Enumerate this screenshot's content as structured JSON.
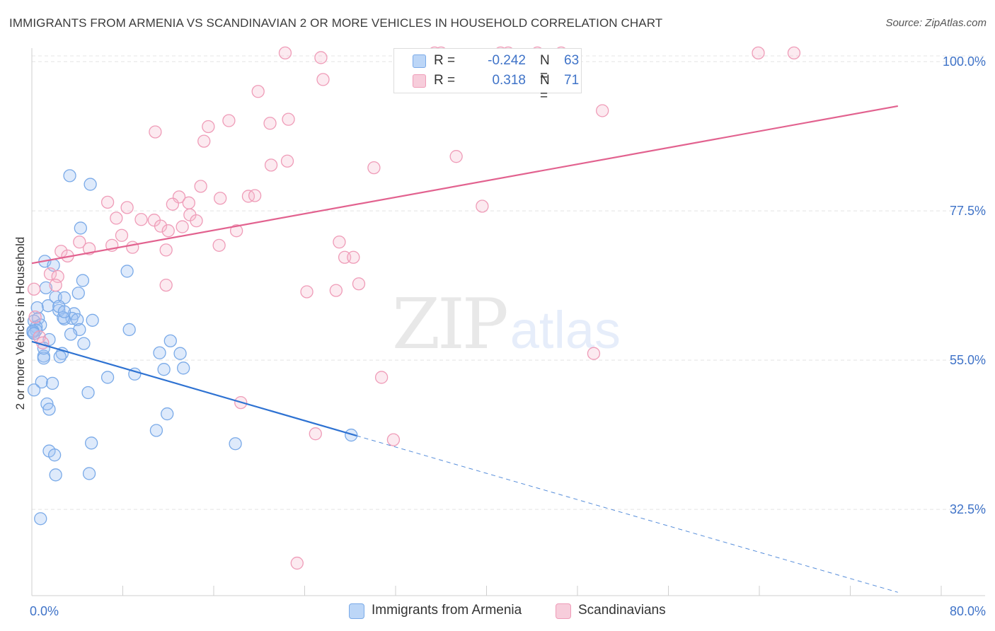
{
  "title": "IMMIGRANTS FROM ARMENIA VS SCANDINAVIAN 2 OR MORE VEHICLES IN HOUSEHOLD CORRELATION CHART",
  "source": "Source: ZipAtlas.com",
  "watermark": {
    "zip": "ZIP",
    "atlas": "atlas"
  },
  "legend_top": {
    "rows": [
      {
        "r_label": "R =",
        "r_value": "-0.242",
        "n_label": "N =",
        "n_value": "63"
      },
      {
        "r_label": "R =",
        "r_value": "0.318",
        "n_label": "N =",
        "n_value": "71"
      }
    ]
  },
  "chart_data": {
    "type": "scatter",
    "title": "IMMIGRANTS FROM ARMENIA VS SCANDINAVIAN 2 OR MORE VEHICLES IN HOUSEHOLD CORRELATION CHART",
    "xlabel": "",
    "ylabel": "2 or more Vehicles in Household",
    "x_tick_labels": [
      "0.0%",
      "80.0%"
    ],
    "y_tick_labels": [
      "100.0%",
      "77.5%",
      "55.0%",
      "32.5%"
    ],
    "y_ticks": [
      100.0,
      77.5,
      55.0,
      32.5
    ],
    "xlim": [
      0,
      84
    ],
    "ylim": [
      19.5,
      101.5
    ],
    "grid": true,
    "legend_placement": "bottom-center",
    "series": [
      {
        "name": "Immigrants from Armenia",
        "color": "#7aaae8",
        "fill": "rgba(160,196,244,0.35)",
        "line_color": "#2e72d2",
        "R": -0.242,
        "N": 63,
        "trend": {
          "x0": 0.0,
          "y0": 57.8,
          "x1": 30.0,
          "y1": 43.6,
          "dash_to_x": 80.0,
          "dash_to_y": 20.0
        },
        "points": [
          [
            3.5,
            82.8
          ],
          [
            5.4,
            81.5
          ],
          [
            4.5,
            74.9
          ],
          [
            8.8,
            68.4
          ],
          [
            1.2,
            69.9
          ],
          [
            2.0,
            69.3
          ],
          [
            4.7,
            67.0
          ],
          [
            1.3,
            65.9
          ],
          [
            2.2,
            64.5
          ],
          [
            3.0,
            64.4
          ],
          [
            1.5,
            63.2
          ],
          [
            0.5,
            62.9
          ],
          [
            2.5,
            62.5
          ],
          [
            3.9,
            62.0
          ],
          [
            3.7,
            61.3
          ],
          [
            3.0,
            61.2
          ],
          [
            2.9,
            61.4
          ],
          [
            0.6,
            61.3
          ],
          [
            4.2,
            61.1
          ],
          [
            0.2,
            60.9
          ],
          [
            0.8,
            60.3
          ],
          [
            0.4,
            60.0
          ],
          [
            0.4,
            59.5
          ],
          [
            0.1,
            59.2
          ],
          [
            0.1,
            59.4
          ],
          [
            0.2,
            59.0
          ],
          [
            4.4,
            59.6
          ],
          [
            9.0,
            59.6
          ],
          [
            4.8,
            57.5
          ],
          [
            12.8,
            57.9
          ],
          [
            2.8,
            56.0
          ],
          [
            1.1,
            55.6
          ],
          [
            1.1,
            55.3
          ],
          [
            2.6,
            55.5
          ],
          [
            11.8,
            56.1
          ],
          [
            13.7,
            56.0
          ],
          [
            14.0,
            53.8
          ],
          [
            7.0,
            52.4
          ],
          [
            9.5,
            52.9
          ],
          [
            12.2,
            53.6
          ],
          [
            0.9,
            51.7
          ],
          [
            1.9,
            51.5
          ],
          [
            0.2,
            50.5
          ],
          [
            5.2,
            50.1
          ],
          [
            1.4,
            48.4
          ],
          [
            1.6,
            47.6
          ],
          [
            12.5,
            46.9
          ],
          [
            11.5,
            44.4
          ],
          [
            29.5,
            43.7
          ],
          [
            1.6,
            41.3
          ],
          [
            2.1,
            40.7
          ],
          [
            5.5,
            42.5
          ],
          [
            18.8,
            42.4
          ],
          [
            5.3,
            37.9
          ],
          [
            2.2,
            37.7
          ],
          [
            0.8,
            31.1
          ],
          [
            3.6,
            58.9
          ],
          [
            1.6,
            58.1
          ],
          [
            4.3,
            65.1
          ],
          [
            2.5,
            63.1
          ],
          [
            1.1,
            56.8
          ],
          [
            3.0,
            62.3
          ],
          [
            5.6,
            61.0
          ]
        ]
      },
      {
        "name": "Scandinavians",
        "color": "#ef9cb8",
        "fill": "rgba(244,184,204,0.30)",
        "line_color": "#e2628f",
        "R": 0.318,
        "N": 71,
        "trend": {
          "x0": 0.0,
          "y0": 69.6,
          "x1": 80.0,
          "y1": 93.3
        },
        "points": [
          [
            23.4,
            101.3
          ],
          [
            26.7,
            100.6
          ],
          [
            37.2,
            101.3
          ],
          [
            37.8,
            101.3
          ],
          [
            43.3,
            101.3
          ],
          [
            44.0,
            101.3
          ],
          [
            46.7,
            101.3
          ],
          [
            48.9,
            101.3
          ],
          [
            67.1,
            101.3
          ],
          [
            70.4,
            101.3
          ],
          [
            26.9,
            97.3
          ],
          [
            20.9,
            95.5
          ],
          [
            52.7,
            92.6
          ],
          [
            23.7,
            91.3
          ],
          [
            18.2,
            91.1
          ],
          [
            22.0,
            90.7
          ],
          [
            16.3,
            90.2
          ],
          [
            11.4,
            89.4
          ],
          [
            15.9,
            88.0
          ],
          [
            23.6,
            85.0
          ],
          [
            22.1,
            84.4
          ],
          [
            39.2,
            85.7
          ],
          [
            31.6,
            84.0
          ],
          [
            15.6,
            81.2
          ],
          [
            13.6,
            79.6
          ],
          [
            20.0,
            79.7
          ],
          [
            20.6,
            79.8
          ],
          [
            17.4,
            79.4
          ],
          [
            14.5,
            78.7
          ],
          [
            7.0,
            78.8
          ],
          [
            13.0,
            78.5
          ],
          [
            8.8,
            78.0
          ],
          [
            14.6,
            76.9
          ],
          [
            7.8,
            76.4
          ],
          [
            10.1,
            76.2
          ],
          [
            15.2,
            76.0
          ],
          [
            11.3,
            76.1
          ],
          [
            13.9,
            75.1
          ],
          [
            11.9,
            75.2
          ],
          [
            12.6,
            74.5
          ],
          [
            8.3,
            73.8
          ],
          [
            18.9,
            74.5
          ],
          [
            4.4,
            72.8
          ],
          [
            17.3,
            72.3
          ],
          [
            7.4,
            72.3
          ],
          [
            9.3,
            72.0
          ],
          [
            12.4,
            71.6
          ],
          [
            5.3,
            71.8
          ],
          [
            2.7,
            71.4
          ],
          [
            28.4,
            72.8
          ],
          [
            3.3,
            70.7
          ],
          [
            41.6,
            78.2
          ],
          [
            28.9,
            70.5
          ],
          [
            29.7,
            70.5
          ],
          [
            1.7,
            68.0
          ],
          [
            2.4,
            67.6
          ],
          [
            12.4,
            66.3
          ],
          [
            30.2,
            66.5
          ],
          [
            28.1,
            65.5
          ],
          [
            25.4,
            65.3
          ],
          [
            0.2,
            65.7
          ],
          [
            32.3,
            52.4
          ],
          [
            19.3,
            48.6
          ],
          [
            51.9,
            56.0
          ],
          [
            26.2,
            43.9
          ],
          [
            33.4,
            43.0
          ],
          [
            24.5,
            24.4
          ],
          [
            0.7,
            58.5
          ],
          [
            1.0,
            57.6
          ],
          [
            0.3,
            61.5
          ],
          [
            2.2,
            66.3
          ]
        ]
      }
    ]
  }
}
